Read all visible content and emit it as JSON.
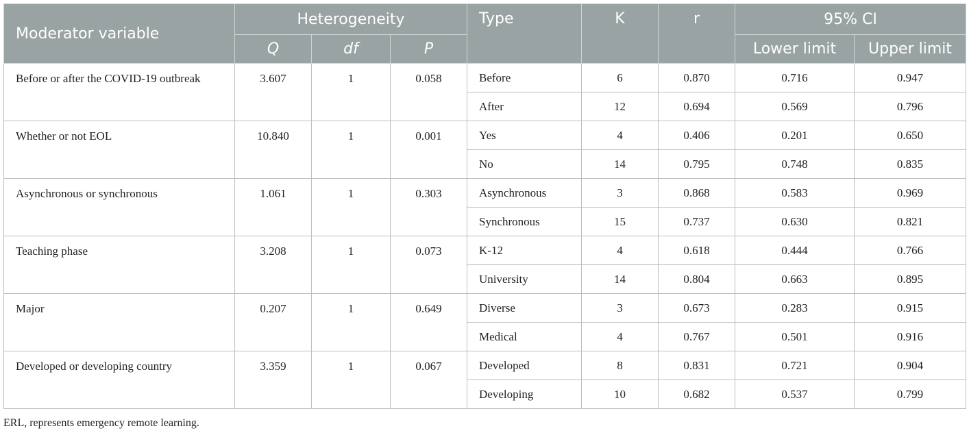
{
  "header": {
    "moderator": "Moderator variable",
    "heterogeneity": "Heterogeneity",
    "q": "Q",
    "df": "df",
    "p": "P",
    "type": "Type",
    "k": "K",
    "r": "r",
    "ci": "95% CI",
    "lower": "Lower limit",
    "upper": "Upper limit"
  },
  "groups": [
    {
      "moderator": "Before or after the COVID-19 outbreak",
      "q": "3.607",
      "df": "1",
      "p": "0.058",
      "rows": [
        {
          "type": "Before",
          "k": "6",
          "r": "0.870",
          "lower": "0.716",
          "upper": "0.947"
        },
        {
          "type": "After",
          "k": "12",
          "r": "0.694",
          "lower": "0.569",
          "upper": "0.796"
        }
      ]
    },
    {
      "moderator": "Whether or not EOL",
      "q": "10.840",
      "df": "1",
      "p": "0.001",
      "rows": [
        {
          "type": "Yes",
          "k": "4",
          "r": "0.406",
          "lower": "0.201",
          "upper": "0.650"
        },
        {
          "type": "No",
          "k": "14",
          "r": "0.795",
          "lower": "0.748",
          "upper": "0.835"
        }
      ]
    },
    {
      "moderator": "Asynchronous or synchronous",
      "q": "1.061",
      "df": "1",
      "p": "0.303",
      "rows": [
        {
          "type": "Asynchronous",
          "k": "3",
          "r": "0.868",
          "lower": "0.583",
          "upper": "0.969"
        },
        {
          "type": "Synchronous",
          "k": "15",
          "r": "0.737",
          "lower": "0.630",
          "upper": "0.821"
        }
      ]
    },
    {
      "moderator": "Teaching phase",
      "q": "3.208",
      "df": "1",
      "p": "0.073",
      "rows": [
        {
          "type": "K-12",
          "k": "4",
          "r": "0.618",
          "lower": "0.444",
          "upper": "0.766"
        },
        {
          "type": "University",
          "k": "14",
          "r": "0.804",
          "lower": "0.663",
          "upper": "0.895"
        }
      ]
    },
    {
      "moderator": "Major",
      "q": "0.207",
      "df": "1",
      "p": "0.649",
      "rows": [
        {
          "type": "Diverse",
          "k": "3",
          "r": "0.673",
          "lower": "0.283",
          "upper": "0.915"
        },
        {
          "type": "Medical",
          "k": "4",
          "r": "0.767",
          "lower": "0.501",
          "upper": "0.916"
        }
      ]
    },
    {
      "moderator": "Developed or developing country",
      "q": "3.359",
      "df": "1",
      "p": "0.067",
      "rows": [
        {
          "type": "Developed",
          "k": "8",
          "r": "0.831",
          "lower": "0.721",
          "upper": "0.904"
        },
        {
          "type": "Developing",
          "k": "10",
          "r": "0.682",
          "lower": "0.537",
          "upper": "0.799"
        }
      ]
    }
  ],
  "footnote": "ERL, represents emergency remote learning."
}
